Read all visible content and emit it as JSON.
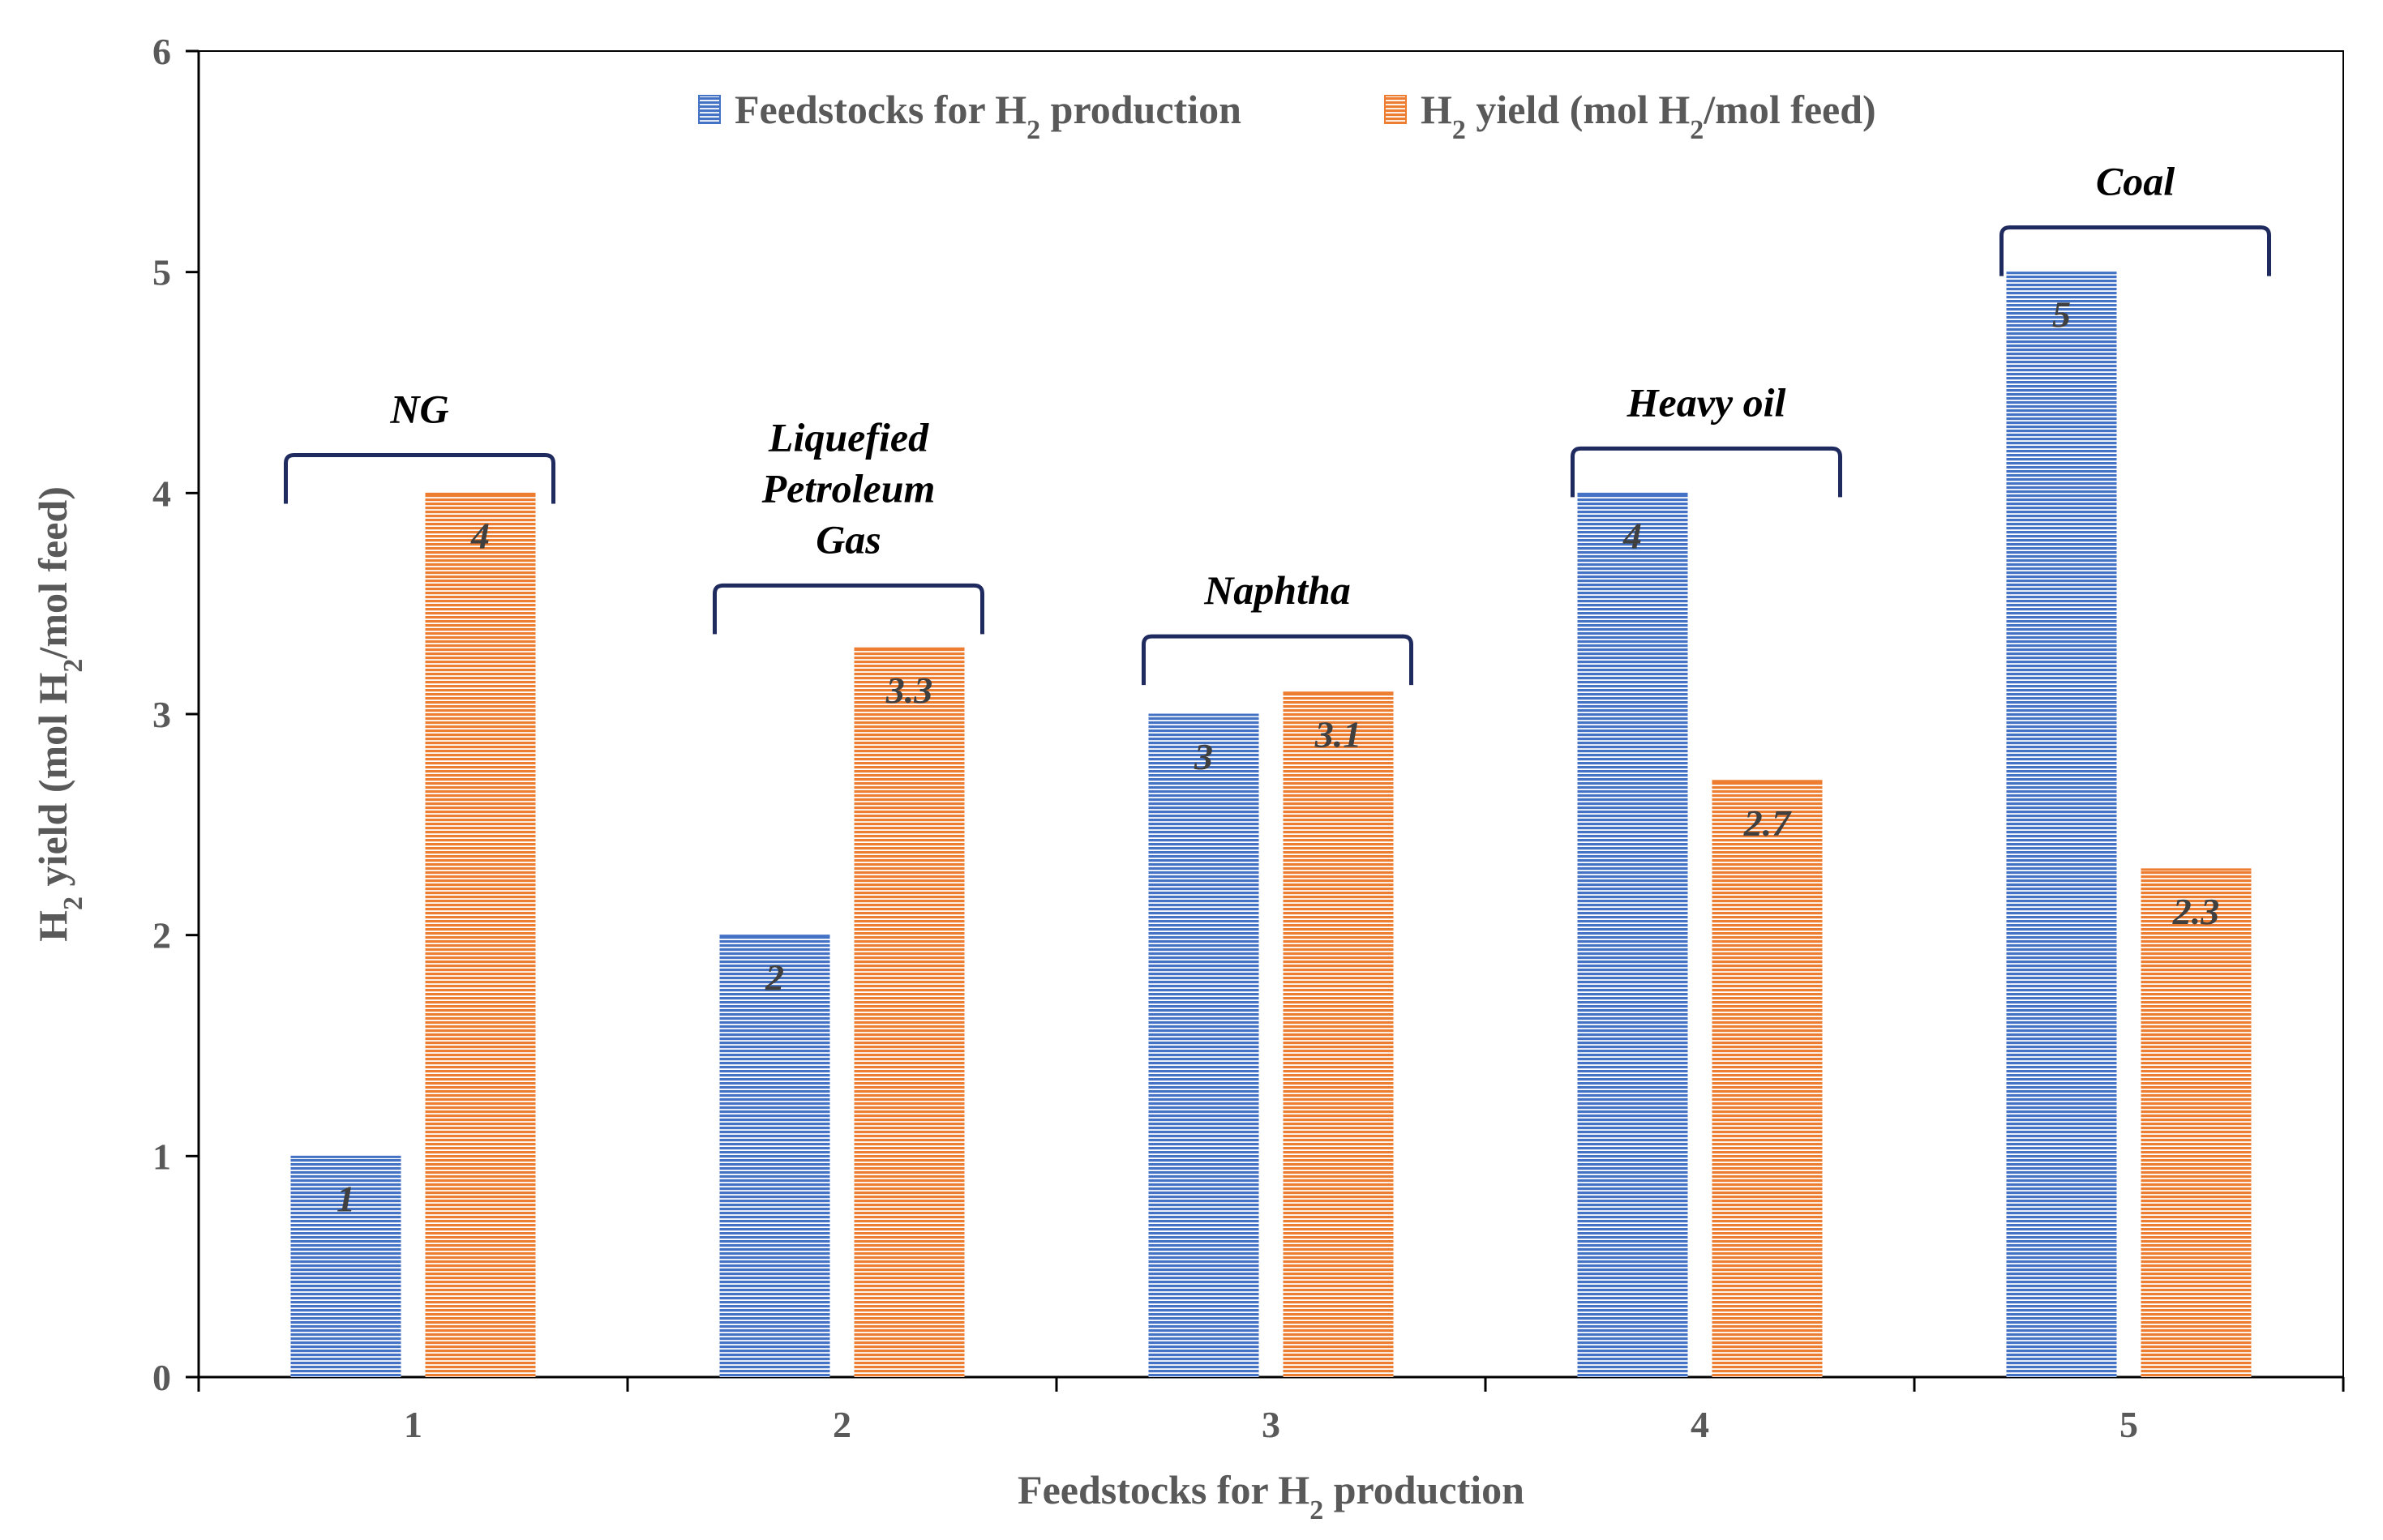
{
  "chart_data": {
    "type": "bar",
    "title": "",
    "categories": [
      "1",
      "2",
      "3",
      "4",
      "5"
    ],
    "series": [
      {
        "name": "Feedstocks for H2 production",
        "values": [
          1,
          2,
          3,
          4,
          5
        ],
        "color": "#4472C4"
      },
      {
        "name": "H2 yield (mol H2/mol feed)",
        "values": [
          4,
          3.3,
          3.1,
          2.7,
          2.3
        ],
        "color": "#ED7D31"
      }
    ],
    "data_labels": [
      [
        "1",
        "2",
        "3",
        "4",
        "5"
      ],
      [
        "4",
        "3.3",
        "3.1",
        "2.7",
        "2.3"
      ]
    ],
    "legend": {
      "position": "top-center",
      "entries": [
        {
          "parts": [
            "Feedstocks for ",
            "H",
            "2",
            " production"
          ]
        },
        {
          "parts": [
            "H",
            "2",
            " yield (mol H",
            "2",
            "/mol feed)"
          ]
        }
      ]
    },
    "xlabel": {
      "parts": [
        "Feedstocks for H",
        "2",
        " production"
      ]
    },
    "ylabel": {
      "parts": [
        "H",
        "2",
        " yield (mol H",
        "2",
        "/mol feed)"
      ]
    },
    "ylim": [
      0,
      6
    ],
    "yticks": [
      0,
      1,
      2,
      3,
      4,
      5,
      6
    ],
    "grid": false,
    "annotations": [
      {
        "category": "1",
        "lines": [
          "NG"
        ],
        "bracket_level": 3.97
      },
      {
        "category": "2",
        "lines": [
          "Liquefied",
          "Petroleum",
          "Gas"
        ],
        "bracket_level": 3.38
      },
      {
        "category": "3",
        "lines": [
          "Naphtha"
        ],
        "bracket_level": 3.15
      },
      {
        "category": "4",
        "lines": [
          "Heavy oil"
        ],
        "bracket_level": 4.0
      },
      {
        "category": "5",
        "lines": [
          "Coal"
        ],
        "bracket_level": 5.0
      }
    ]
  }
}
